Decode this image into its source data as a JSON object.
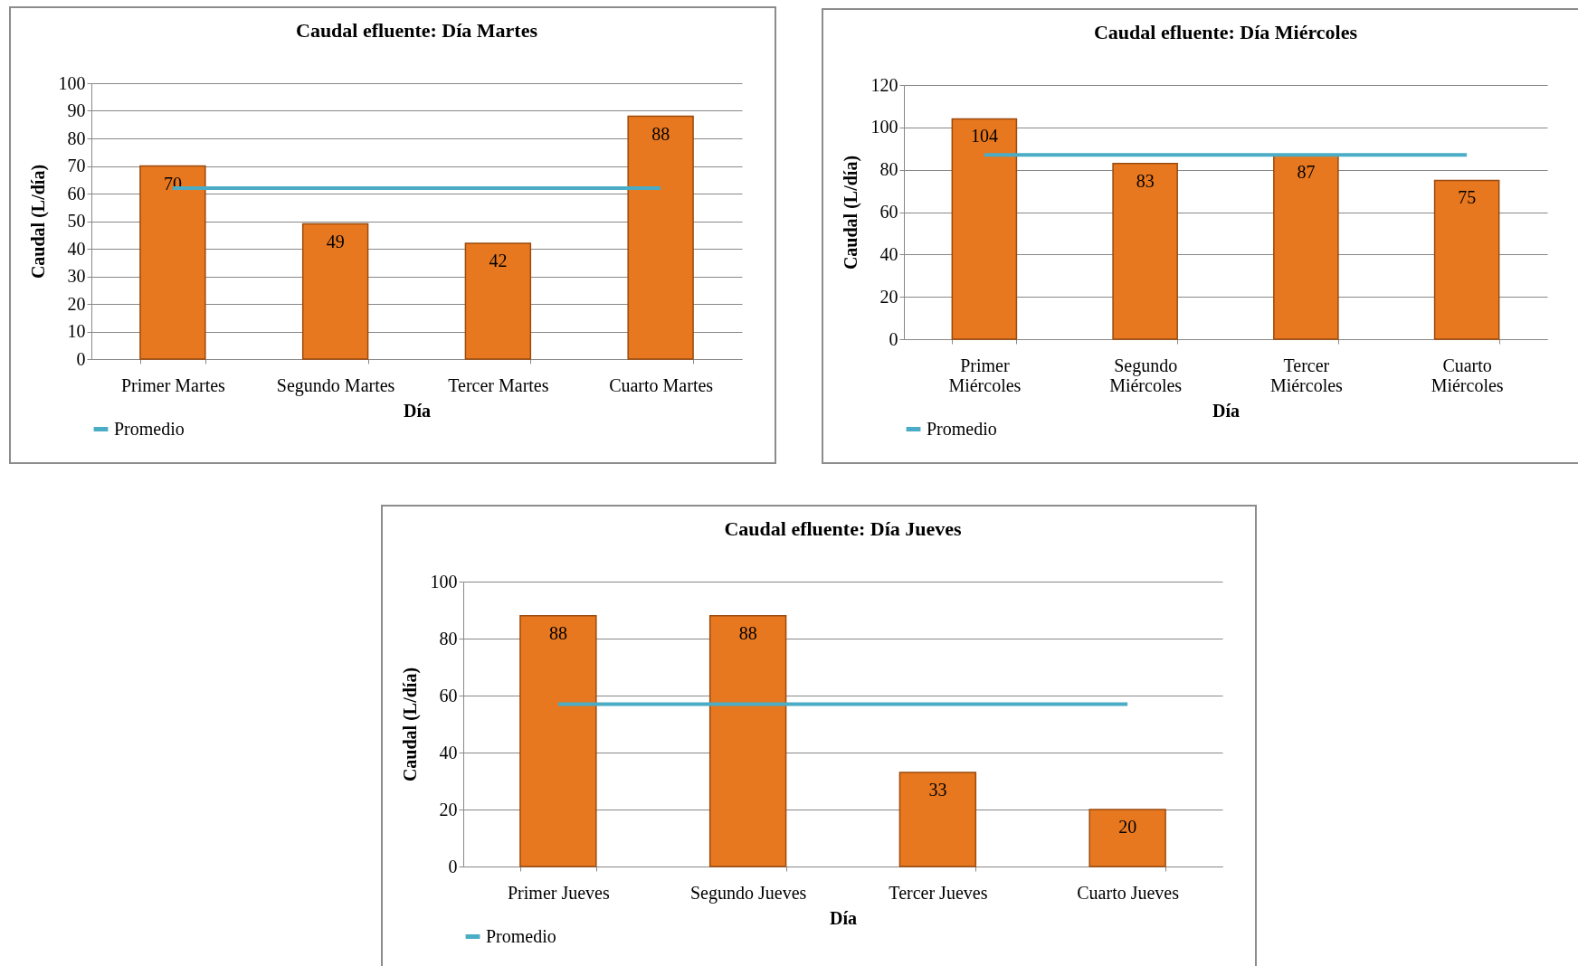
{
  "chart_data": [
    {
      "type": "bar",
      "title": "Caudal efluente: Día Martes",
      "xlabel": "Día",
      "ylabel": "Caudal (L/día)",
      "categories": [
        "Primer Martes",
        "Segundo Martes",
        "Tercer Martes",
        "Cuarto Martes"
      ],
      "series": [
        {
          "color": "#e8781f",
          "values": [
            70,
            49,
            42,
            88
          ],
          "value_labels": [
            "70",
            "49",
            "42",
            "88"
          ]
        },
        {
          "name": "Promedio",
          "type": "line",
          "color": "#4bacc6",
          "values": [
            62,
            62,
            62,
            62
          ]
        }
      ],
      "ylim": [
        0,
        100
      ],
      "yticks": [
        0,
        10,
        20,
        30,
        40,
        50,
        60,
        70,
        80,
        90,
        100
      ],
      "grid": "y",
      "legend": "bottom left"
    },
    {
      "type": "bar",
      "title": "Caudal efluente: Día Miércoles",
      "xlabel": "Día",
      "ylabel": "Caudal (L/día)",
      "categories": [
        "Primer Miércoles",
        "Segundo Miércoles",
        "Tercer Miércoles",
        "Cuarto Miércoles"
      ],
      "series": [
        {
          "color": "#e8781f",
          "values": [
            104,
            83,
            87,
            75
          ],
          "value_labels": [
            "104",
            "83",
            "87",
            "75"
          ]
        },
        {
          "name": "Promedio",
          "type": "line",
          "color": "#4bacc6",
          "values": [
            87,
            87,
            87,
            87
          ]
        }
      ],
      "ylim": [
        0,
        120
      ],
      "yticks": [
        0,
        20,
        40,
        60,
        80,
        100,
        120
      ],
      "grid": "y",
      "legend": "bottom left"
    },
    {
      "type": "bar",
      "title": "Caudal efluente: Día Jueves",
      "xlabel": "Día",
      "ylabel": "Caudal (L/día)",
      "categories": [
        "Primer Jueves",
        "Segundo Jueves",
        "Tercer Jueves",
        "Cuarto Jueves"
      ],
      "series": [
        {
          "color": "#e8781f",
          "values": [
            88,
            88,
            33,
            20
          ],
          "value_labels": [
            "88",
            "88",
            "33",
            "20"
          ]
        },
        {
          "name": "Promedio",
          "type": "line",
          "color": "#4bacc6",
          "values": [
            57,
            57,
            57,
            57
          ]
        }
      ],
      "ylim": [
        0,
        100
      ],
      "yticks": [
        0,
        20,
        40,
        60,
        80,
        100
      ],
      "grid": "y",
      "legend": "bottom left"
    }
  ]
}
